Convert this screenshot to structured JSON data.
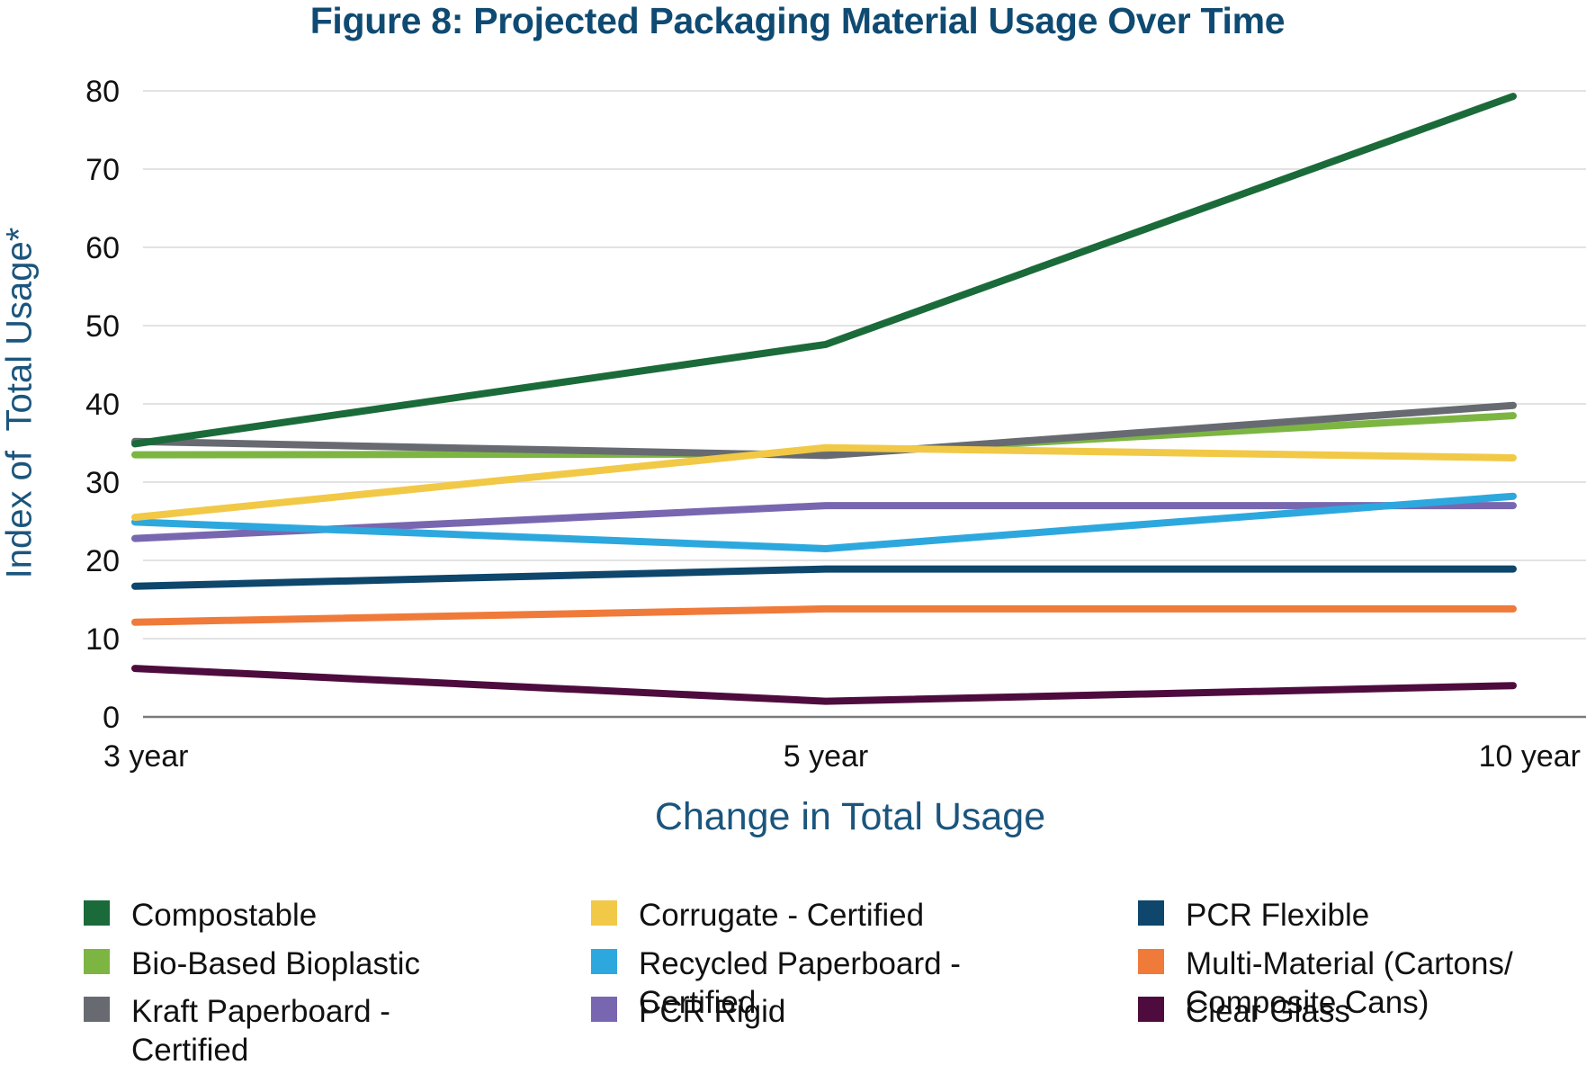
{
  "chart_data": {
    "type": "line",
    "title": "Figure 8: Projected Packaging Material Usage Over Time",
    "xlabel": "Change in Total Usage",
    "ylabel": "Index of  Total Usage*",
    "categories": [
      "3 year",
      "5 year",
      "10 year"
    ],
    "ylim": [
      0,
      80
    ],
    "yticks": [
      0,
      10,
      20,
      30,
      40,
      50,
      60,
      70,
      80
    ],
    "grid": true,
    "legend_position": "bottom",
    "series": [
      {
        "name": "Compostable",
        "color": "#1b6b3a",
        "values": [
          34.9,
          47.6,
          79.3
        ]
      },
      {
        "name": "Bio-Based Bioplastic",
        "color": "#7db543",
        "values": [
          33.5,
          33.6,
          38.5
        ]
      },
      {
        "name": "Kraft Paperboard - Certified",
        "color": "#676b71",
        "values": [
          35.2,
          33.4,
          39.8
        ]
      },
      {
        "name": "Corrugate - Certified",
        "color": "#f1c947",
        "values": [
          25.5,
          34.4,
          33.1
        ]
      },
      {
        "name": "Recycled Paperboard - Certified",
        "color": "#2da8de",
        "values": [
          24.9,
          21.5,
          28.2
        ]
      },
      {
        "name": "PCR Rigid",
        "color": "#7867b0",
        "values": [
          22.8,
          27.0,
          27.0
        ]
      },
      {
        "name": "PCR Flexible",
        "color": "#0e466c",
        "values": [
          16.7,
          18.9,
          18.9
        ]
      },
      {
        "name": "Multi-Material (Cartons/ Composite Cans)",
        "color": "#f07a3a",
        "values": [
          12.1,
          13.8,
          13.8
        ]
      },
      {
        "name": "Clear Glass",
        "color": "#4e0c3e",
        "values": [
          6.2,
          2.0,
          4.0
        ]
      }
    ]
  },
  "legend": {
    "columns": [
      [
        {
          "series_index": 0,
          "lines": [
            "Compostable"
          ]
        },
        {
          "series_index": 1,
          "lines": [
            "Bio-Based Bioplastic"
          ]
        },
        {
          "series_index": 2,
          "lines": [
            "Kraft Paperboard -",
            "Certified"
          ]
        }
      ],
      [
        {
          "series_index": 3,
          "lines": [
            "Corrugate - Certified"
          ]
        },
        {
          "series_index": 4,
          "lines": [
            "Recycled Paperboard -",
            "Certified"
          ]
        },
        {
          "series_index": 5,
          "lines": [
            "PCR Rigid"
          ]
        }
      ],
      [
        {
          "series_index": 6,
          "lines": [
            "PCR Flexible"
          ]
        },
        {
          "series_index": 7,
          "lines": [
            "Multi-Material (Cartons/",
            "Composite Cans)"
          ]
        },
        {
          "series_index": 8,
          "lines": [
            "Clear Glass"
          ]
        }
      ]
    ]
  }
}
